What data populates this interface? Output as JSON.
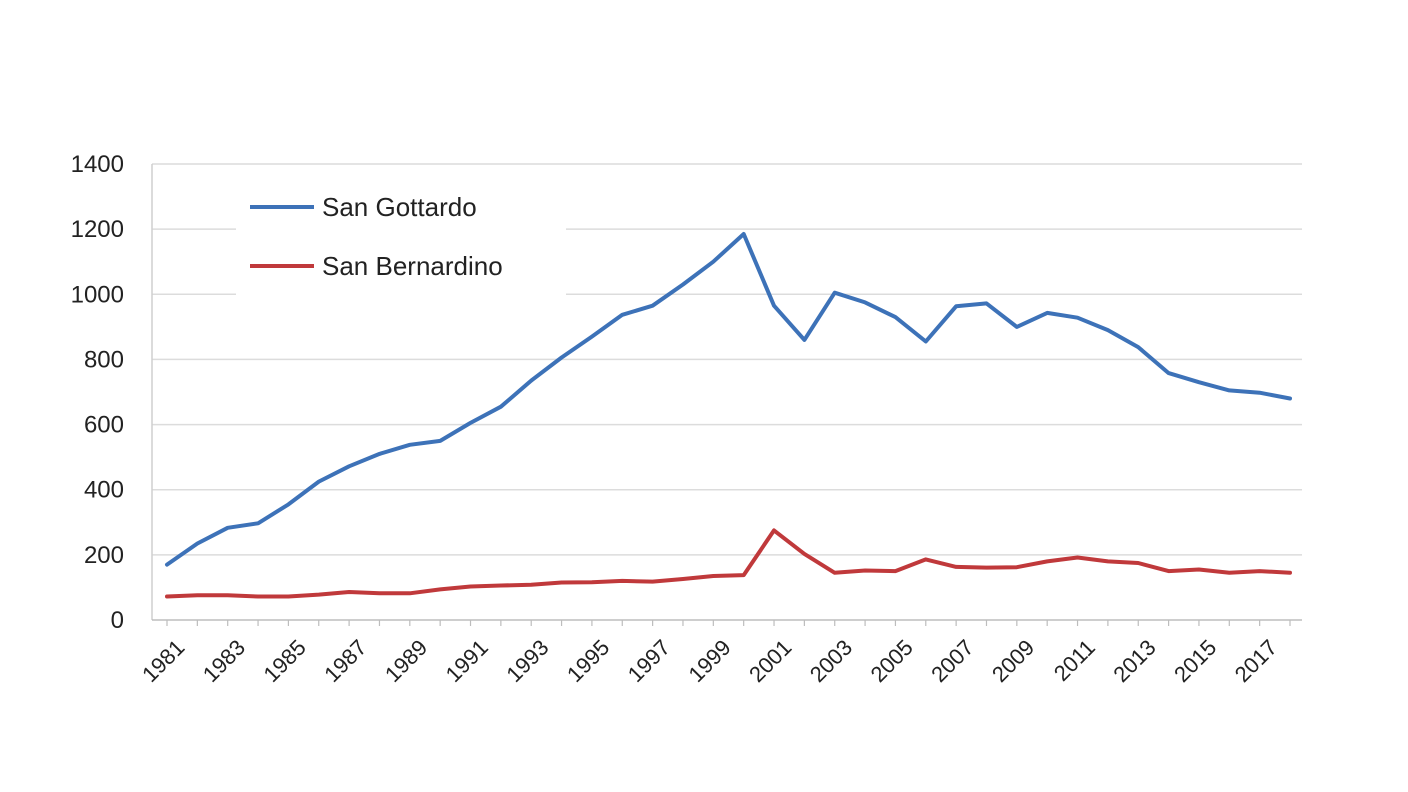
{
  "chart_data": {
    "type": "line",
    "title": "",
    "xlabel": "",
    "ylabel": "",
    "ylim": [
      0,
      1400
    ],
    "y_ticks": [
      0,
      200,
      400,
      600,
      800,
      1000,
      1200,
      1400
    ],
    "x": [
      1981,
      1982,
      1983,
      1984,
      1985,
      1986,
      1987,
      1988,
      1989,
      1990,
      1991,
      1992,
      1993,
      1994,
      1995,
      1996,
      1997,
      1998,
      1999,
      2000,
      2001,
      2002,
      2003,
      2004,
      2005,
      2006,
      2007,
      2008,
      2009,
      2010,
      2011,
      2012,
      2013,
      2014,
      2015,
      2016,
      2017,
      2018
    ],
    "x_tick_labels": [
      1981,
      1983,
      1985,
      1987,
      1989,
      1991,
      1993,
      1995,
      1997,
      1999,
      2001,
      2003,
      2005,
      2007,
      2009,
      2011,
      2013,
      2015,
      2017
    ],
    "grid": "horizontal",
    "legend_position": "top-left",
    "series": [
      {
        "name": "San Gottardo",
        "color": "#3d72b8",
        "values": [
          170,
          235,
          283,
          297,
          355,
          425,
          472,
          510,
          538,
          550,
          605,
          655,
          735,
          806,
          870,
          937,
          965,
          1030,
          1100,
          1185,
          965,
          860,
          1005,
          975,
          930,
          855,
          963,
          972,
          900,
          943,
          928,
          890,
          838,
          758,
          730,
          705,
          698,
          680
        ]
      },
      {
        "name": "San Bernardino",
        "color": "#c0393b",
        "values": [
          72,
          76,
          76,
          72,
          72,
          78,
          86,
          82,
          82,
          94,
          103,
          106,
          108,
          115,
          116,
          120,
          118,
          126,
          135,
          138,
          275,
          203,
          145,
          152,
          150,
          186,
          163,
          161,
          162,
          180,
          192,
          180,
          175,
          150,
          155,
          145,
          150,
          145
        ]
      }
    ]
  }
}
